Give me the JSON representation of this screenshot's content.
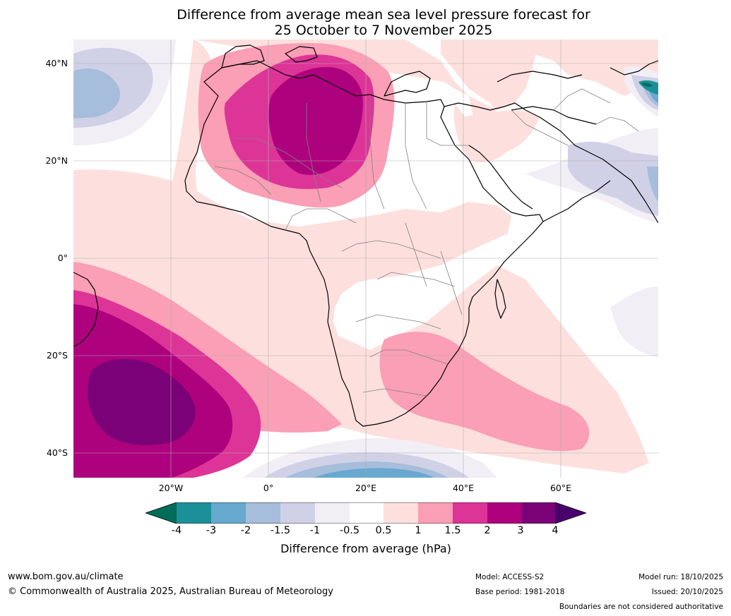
{
  "title": {
    "line1": "Difference from average mean sea level pressure forecast for",
    "line2": "25 October to 7 November 2025"
  },
  "map": {
    "lat_labels": [
      "40°N",
      "20°N",
      "0°",
      "20°S",
      "40°S"
    ],
    "lon_labels": [
      "20°W",
      "0°",
      "20°E",
      "40°E",
      "60°E"
    ],
    "extent": {
      "lon": [
        -40,
        80
      ],
      "lat": [
        -45,
        45
      ]
    }
  },
  "colorbar": {
    "labels": [
      "-4",
      "-3",
      "-2",
      "-1.5",
      "-1",
      "-0.5",
      "0.5",
      "1",
      "1.5",
      "2",
      "3",
      "4"
    ],
    "title": "Difference from average (hPa)",
    "colors": {
      "below_min": "#016c59",
      "bins": [
        "#1c9099",
        "#67a9cf",
        "#a6bddb",
        "#d0d1e6",
        "#f1eef6",
        "#ffffff",
        "#fde0dd",
        "#fa9fb5",
        "#dd3497",
        "#ae017e",
        "#7a0177"
      ],
      "above_max": "#49006a"
    }
  },
  "footer": {
    "website": "www.bom.gov.au/climate",
    "copyright": "© Commonwealth of Australia 2025, Australian Bureau of Meteorology",
    "model": "Model: ACCESS-S2",
    "base_period": "Base period: 1981-2018",
    "model_run": "Model run: 18/10/2025",
    "issued": "Issued: 20/10/2025",
    "disclaimer": "Boundaries are not considered authoritative"
  }
}
